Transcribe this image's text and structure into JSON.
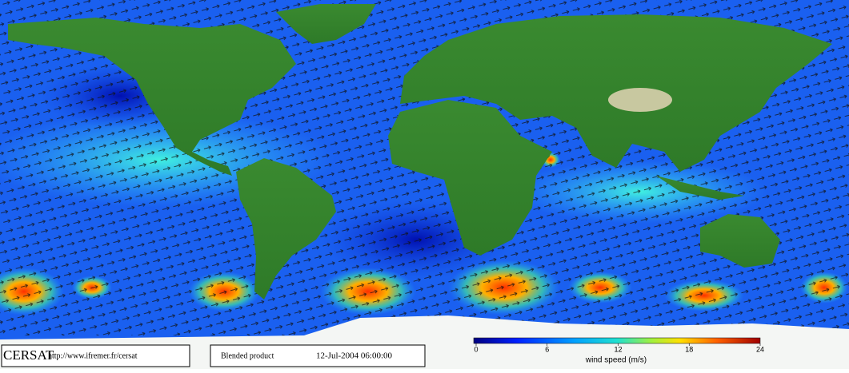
{
  "footer": {
    "logo": "CERSAT",
    "url": "http://www.ifremer.fr/cersat",
    "product": "Blended product",
    "timestamp": "12-Jul-2004 06:00:00"
  },
  "colorbar": {
    "label": "wind speed (m/s)",
    "range": [
      0,
      24
    ],
    "ticks": [
      0,
      6,
      12,
      18,
      24
    ]
  }
}
